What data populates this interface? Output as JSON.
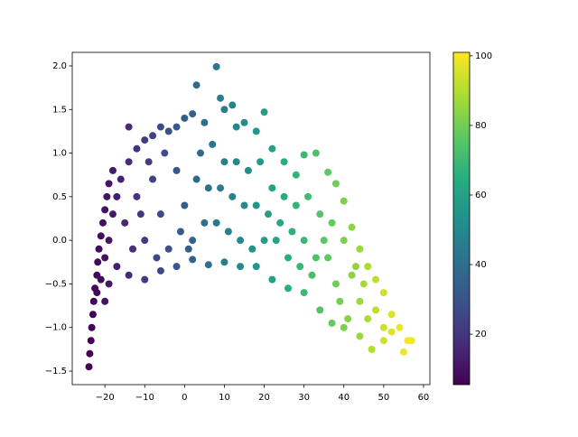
{
  "chart_data": {
    "type": "scatter",
    "x": [
      -24,
      -23.8,
      -23.5,
      -23.3,
      -23,
      -22.8,
      -22.5,
      -22,
      -21.8,
      -21.5,
      -21,
      -20.5,
      -20,
      -19.5,
      -19,
      -18,
      -22,
      -21,
      -20,
      -19,
      -18,
      -17,
      -16,
      -14,
      -14,
      -12,
      -10,
      -8,
      -6,
      -4,
      -2,
      0,
      2,
      3,
      5,
      8,
      9,
      10,
      12,
      13,
      15,
      18,
      20,
      22,
      25,
      28,
      30,
      33,
      36,
      38,
      40,
      42,
      44,
      46,
      48,
      50,
      52,
      54,
      56,
      57,
      55,
      50,
      47,
      44,
      40,
      37,
      34,
      30,
      26,
      22,
      18,
      14,
      10,
      6,
      2,
      -2,
      -6,
      -10,
      -14,
      -17,
      -19,
      -20,
      -15,
      -12,
      -10,
      -8,
      -6,
      -4,
      -2,
      0,
      2,
      4,
      6,
      8,
      10,
      12,
      14,
      16,
      18,
      20,
      22,
      24,
      26,
      28,
      30,
      32,
      34,
      36,
      38,
      40,
      42,
      44,
      46,
      48,
      50,
      52,
      -13,
      -9,
      -5,
      -1,
      3,
      7,
      11,
      15,
      19,
      23,
      27,
      31,
      35,
      39,
      43,
      -11,
      -7,
      1,
      5,
      9,
      13,
      17,
      21,
      25,
      29,
      33,
      37,
      41,
      45
    ],
    "y": [
      -1.45,
      -1.3,
      -1.15,
      -1.0,
      -0.85,
      -0.7,
      -0.55,
      -0.4,
      -0.25,
      -0.1,
      0.05,
      0.2,
      0.35,
      0.5,
      0.65,
      0.8,
      -0.6,
      -0.45,
      -0.2,
      0,
      0.3,
      0.5,
      0.7,
      1.3,
      0.9,
      1.05,
      1.15,
      1.2,
      1.3,
      1.25,
      1.3,
      1.4,
      1.45,
      1.78,
      1.35,
      1.99,
      1.63,
      1.5,
      1.55,
      1.3,
      1.35,
      1.25,
      1.47,
      1.05,
      0.9,
      0.75,
      0.98,
      1.0,
      0.78,
      0.65,
      0.45,
      0.15,
      -0.1,
      -0.3,
      -0.45,
      -0.6,
      -0.85,
      -1.0,
      -1.15,
      -1.15,
      -1.28,
      -1.15,
      -1.25,
      -1.1,
      -1.0,
      -0.95,
      -0.8,
      -0.6,
      -0.55,
      -0.45,
      -0.3,
      -0.3,
      -0.25,
      -0.28,
      -0.22,
      -0.3,
      -0.35,
      -0.45,
      -0.4,
      -0.3,
      -0.5,
      -0.7,
      0.2,
      0.5,
      0,
      0.7,
      0.3,
      -0.1,
      0.8,
      0.4,
      0,
      1.0,
      0.6,
      0.2,
      0.9,
      0.5,
      0,
      0.8,
      0.4,
      0,
      0.6,
      0.2,
      -0.2,
      0.4,
      0,
      -0.4,
      0.3,
      -0.2,
      -0.5,
      0,
      -0.4,
      -0.7,
      -0.9,
      -0.8,
      -1.0,
      -1.05,
      -0.1,
      0.9,
      1.0,
      0.1,
      0.7,
      1.1,
      0.1,
      0.4,
      0.9,
      0.0,
      0.1,
      0.5,
      0.0,
      -0.7,
      -0.3,
      0.3,
      -0.2,
      -0.1,
      0.2,
      0.6,
      0.9,
      -0.1,
      0.3,
      0.5,
      -0.3,
      -0.2,
      0.2,
      -0.9,
      -0.5
    ],
    "c": [
      5,
      5.2,
      5.6,
      5.8,
      6.2,
      6.4,
      6.8,
      7.4,
      7.6,
      8,
      8.6,
      9.2,
      9.8,
      10.4,
      11,
      12.2,
      7.4,
      8.6,
      9.8,
      11,
      12.2,
      13.4,
      14.6,
      17,
      17,
      19.4,
      21.8,
      24.2,
      26.6,
      29,
      31.4,
      33.8,
      36.2,
      37.4,
      39.8,
      43.4,
      44.6,
      45.8,
      48.2,
      49.4,
      51.8,
      55.4,
      57.8,
      60.2,
      63.8,
      67.4,
      69.8,
      73.4,
      77,
      79.4,
      81.8,
      84.2,
      86.6,
      89,
      91.4,
      93.8,
      96.2,
      98.6,
      100,
      100,
      99,
      93.8,
      90.2,
      86.6,
      81.8,
      78.2,
      74.6,
      69.8,
      65,
      60.2,
      55.4,
      50.6,
      45.8,
      41,
      36.2,
      31.4,
      26.6,
      21.8,
      17,
      13.4,
      11,
      9.8,
      15.8,
      19.4,
      21.8,
      24.2,
      26.6,
      29,
      31.4,
      33.8,
      36.2,
      38.6,
      41,
      43.4,
      45.8,
      48.2,
      50.6,
      53,
      55.4,
      57.8,
      60.2,
      62.6,
      65,
      67.4,
      69.8,
      72.2,
      74.6,
      77,
      79.4,
      81.8,
      84.2,
      86.6,
      89,
      91.4,
      93.8,
      96.2,
      18.2,
      23,
      27.8,
      32.6,
      37.4,
      42.2,
      47,
      51.8,
      56.6,
      61.4,
      66.2,
      71,
      75.8,
      80.6,
      85.4,
      20.6,
      25.4,
      35,
      39.8,
      44.6,
      49.4,
      54.2,
      59,
      63.8,
      68.6,
      73.4,
      78.2,
      83,
      87.8
    ],
    "colormap": "viridis",
    "xlim": [
      -28.2,
      61.6
    ],
    "xticks": [
      {
        "value": -20,
        "label": "−20"
      },
      {
        "value": -10,
        "label": "−10"
      },
      0,
      10,
      20,
      30,
      40,
      50,
      60
    ],
    "ylim": [
      -1.655,
      2.155
    ],
    "yticks": [
      {
        "value": -1.5,
        "label": "−1.5"
      },
      {
        "value": -1.0,
        "label": "−1.0"
      },
      {
        "value": -0.5,
        "label": "−0.5"
      },
      {
        "value": 0,
        "label": "0.0"
      },
      0.5,
      {
        "value": 1.0,
        "label": "1.0"
      },
      1.5,
      {
        "value": 2.0,
        "label": "2.0"
      }
    ],
    "clim": [
      5.5,
      101
    ],
    "cticks": [
      20,
      40,
      60,
      80,
      100
    ]
  }
}
